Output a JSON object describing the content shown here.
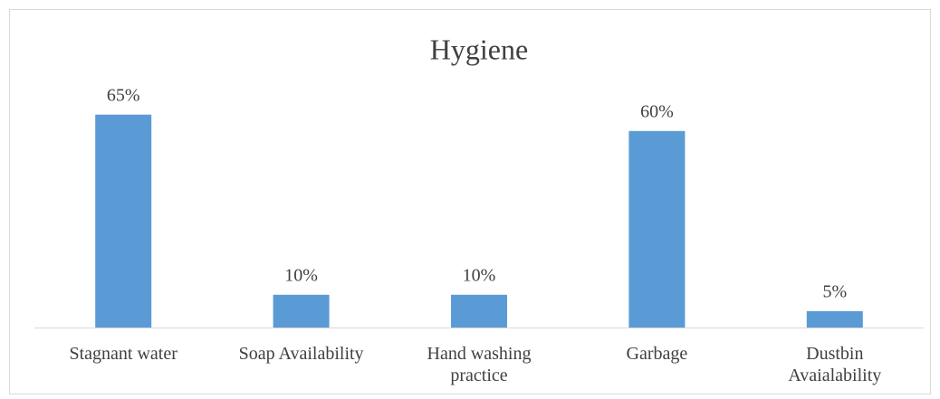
{
  "chart_data": {
    "type": "bar",
    "title": "Hygiene",
    "categories": [
      "Stagnant water",
      "Soap Availability",
      "Hand washing practice",
      "Garbage",
      "Dustbin Avaialability"
    ],
    "values": [
      65,
      10,
      10,
      60,
      5
    ],
    "value_labels": [
      "65%",
      "10%",
      "10%",
      "60%",
      "5%"
    ],
    "color": "#5b9bd5"
  }
}
